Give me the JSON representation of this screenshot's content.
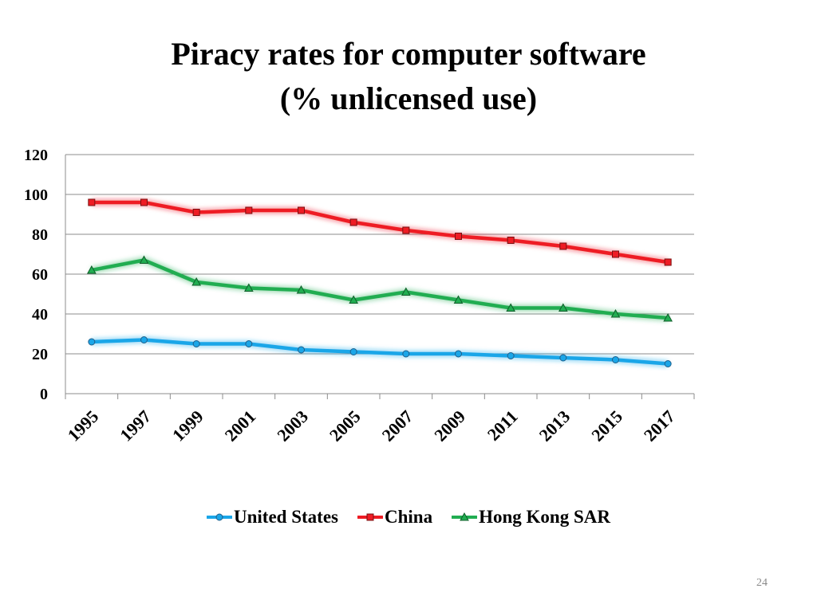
{
  "slide": {
    "title_line1": "Piracy rates for computer software",
    "title_line2": "(% unlicensed use)",
    "page_number": "24"
  },
  "chart_data": {
    "type": "line",
    "title": "Piracy rates for computer software (% unlicensed use)",
    "xlabel": "",
    "ylabel": "",
    "ylim": [
      0,
      120
    ],
    "yticks": [
      0,
      20,
      40,
      60,
      80,
      100,
      120
    ],
    "x": [
      "1995",
      "1997",
      "1999",
      "2001",
      "2003",
      "2005",
      "2007",
      "2009",
      "2011",
      "2013",
      "2015",
      "2017"
    ],
    "grid": true,
    "legend_position": "bottom",
    "series": [
      {
        "name": "United States",
        "color": "#1aa6e8",
        "marker": "circle",
        "values": [
          26,
          27,
          25,
          25,
          22,
          21,
          20,
          20,
          19,
          18,
          17,
          15
        ]
      },
      {
        "name": "China",
        "color": "#ee1c24",
        "marker": "square",
        "values": [
          96,
          96,
          91,
          92,
          92,
          86,
          82,
          79,
          77,
          74,
          70,
          66
        ]
      },
      {
        "name": "Hong Kong SAR",
        "color": "#21ad51",
        "marker": "triangle",
        "values": [
          62,
          67,
          56,
          53,
          52,
          47,
          51,
          47,
          43,
          43,
          40,
          38
        ]
      }
    ]
  }
}
